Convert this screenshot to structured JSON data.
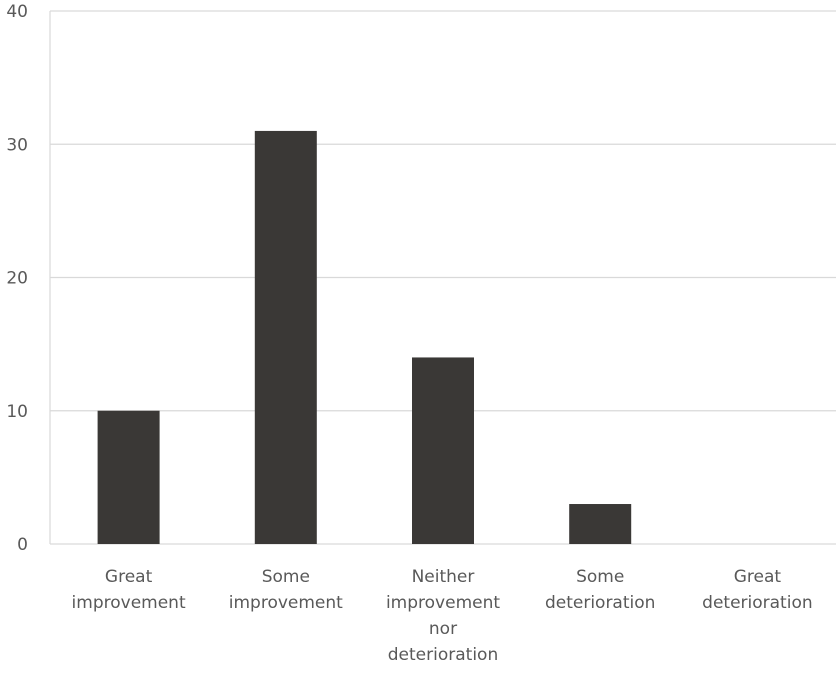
{
  "chart_data": {
    "type": "bar",
    "categories": [
      [
        "Great",
        "improvement"
      ],
      [
        "Some",
        "improvement"
      ],
      [
        "Neither",
        "improvement",
        "nor",
        "deterioration"
      ],
      [
        "Some",
        "deterioration"
      ],
      [
        "Great",
        "deterioration"
      ]
    ],
    "values": [
      10,
      31,
      14,
      3,
      0
    ],
    "ylim": [
      0,
      40
    ],
    "yticks": [
      0,
      10,
      20,
      30,
      40
    ],
    "grid": true,
    "bar_color": "#3a3836",
    "grid_color": "#d9d9d9",
    "axis_color": "#d9d9d9",
    "text_color": "#595959"
  }
}
